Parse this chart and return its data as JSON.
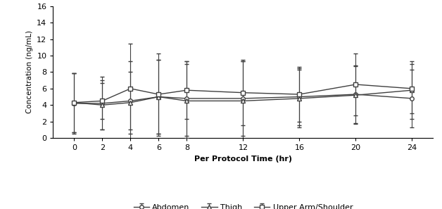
{
  "time_points": [
    0,
    2,
    4,
    6,
    8,
    12,
    16,
    20,
    24
  ],
  "abdomen": {
    "mean": [
      4.2,
      4.2,
      4.5,
      5.0,
      4.8,
      4.8,
      5.0,
      5.3,
      4.8
    ],
    "sd": [
      3.7,
      3.2,
      3.5,
      4.5,
      4.5,
      4.5,
      3.5,
      3.5,
      3.5
    ],
    "label": "Abdomen",
    "marker": "o",
    "linestyle": "-"
  },
  "thigh": {
    "mean": [
      4.3,
      4.0,
      4.3,
      5.0,
      4.5,
      4.5,
      4.8,
      5.2,
      5.8
    ],
    "sd": [
      3.6,
      3.0,
      5.0,
      4.5,
      4.5,
      4.8,
      3.5,
      3.5,
      3.5
    ],
    "label": "Thigh",
    "marker": "^",
    "linestyle": "-"
  },
  "upper_arm": {
    "mean": [
      4.3,
      4.5,
      6.0,
      5.3,
      5.8,
      5.5,
      5.3,
      6.5,
      6.0
    ],
    "sd": [
      3.6,
      2.2,
      5.5,
      5.0,
      3.5,
      4.0,
      3.3,
      3.8,
      3.0
    ],
    "label": "Upper Arm/Shoulder",
    "marker": "s",
    "linestyle": "-"
  },
  "line_color": "#404040",
  "xlabel": "Per Protocol Time (hr)",
  "ylabel": "Concentration (ng/mL)",
  "ylim": [
    0,
    16
  ],
  "yticks": [
    0,
    2,
    4,
    6,
    8,
    10,
    12,
    14,
    16
  ],
  "xticks": [
    0,
    2,
    4,
    6,
    8,
    12,
    16,
    20,
    24
  ],
  "background_color": "#ffffff",
  "markersize": 4,
  "linewidth": 1.0,
  "capsize": 2,
  "elinewidth": 0.8
}
